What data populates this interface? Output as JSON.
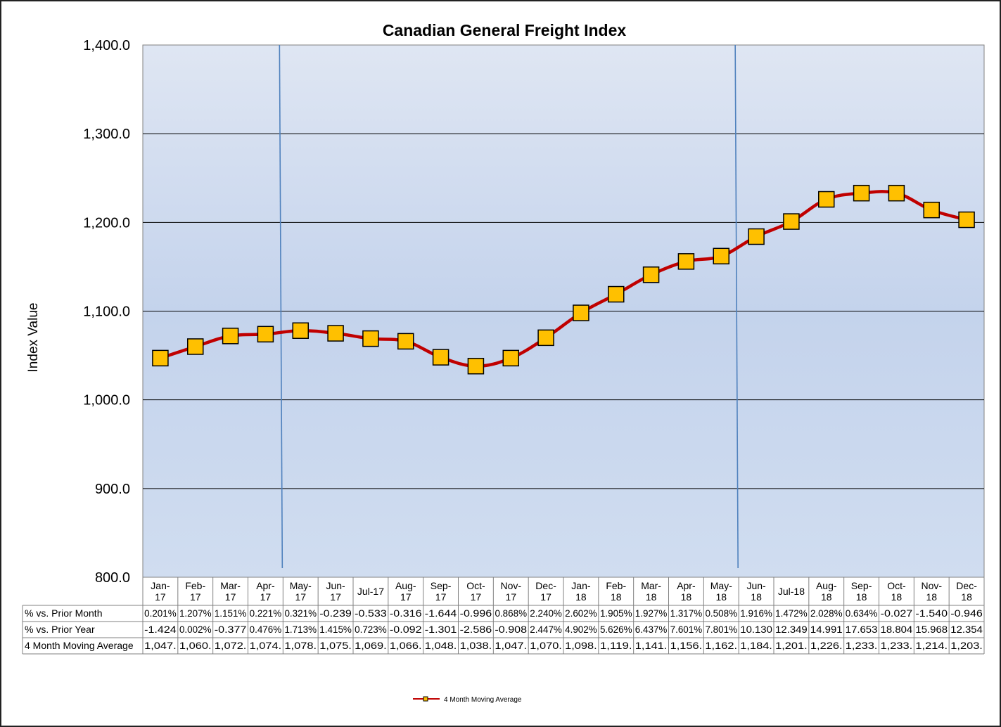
{
  "chart_data": {
    "type": "line",
    "title": "Canadian General Freight Index",
    "ylabel": "Index Value",
    "xlabel": "",
    "ylim": [
      800,
      1400
    ],
    "y_ticks": [
      "1,400.0",
      "1,300.0",
      "1,200.0",
      "1,100.0",
      "1,000.0",
      "900.0",
      "800.0"
    ],
    "y_tick_values": [
      1400,
      1300,
      1200,
      1100,
      1000,
      900,
      800
    ],
    "grid": true,
    "legend_position": "bottom-center",
    "categories": [
      [
        "Jan-",
        "17"
      ],
      [
        "Feb-",
        "17"
      ],
      [
        "Mar-",
        "17"
      ],
      [
        "Apr-",
        "17"
      ],
      [
        "May-",
        "17"
      ],
      [
        "Jun-",
        "17"
      ],
      [
        "Jul-17"
      ],
      [
        "Aug-",
        "17"
      ],
      [
        "Sep-",
        "17"
      ],
      [
        "Oct-",
        "17"
      ],
      [
        "Nov-",
        "17"
      ],
      [
        "Dec-",
        "17"
      ],
      [
        "Jan-",
        "18"
      ],
      [
        "Feb-",
        "18"
      ],
      [
        "Mar-",
        "18"
      ],
      [
        "Apr-",
        "18"
      ],
      [
        "May-",
        "18"
      ],
      [
        "Jun-",
        "18"
      ],
      [
        "Jul-18"
      ],
      [
        "Aug-",
        "18"
      ],
      [
        "Sep-",
        "18"
      ],
      [
        "Oct-",
        "18"
      ],
      [
        "Nov-",
        "18"
      ],
      [
        "Dec-",
        "18"
      ]
    ],
    "series": [
      {
        "name": "4 Month Moving Average",
        "color": "#c00000",
        "marker_color": "#ffc000",
        "values": [
          1047,
          1060,
          1072,
          1074,
          1078,
          1075,
          1069,
          1066,
          1048,
          1038,
          1047,
          1070,
          1098,
          1119,
          1141,
          1156,
          1162,
          1184,
          1201,
          1226,
          1233,
          1233,
          1214,
          1203
        ]
      }
    ],
    "vertical_markers": [
      {
        "after_category": "Apr-17",
        "color": "#4f81bd"
      },
      {
        "after_category": "May-18",
        "color": "#4f81bd"
      }
    ],
    "table": {
      "rows": [
        {
          "label": "% vs. Prior Month",
          "cells": [
            "0.201%",
            "1.207%",
            "1.151%",
            "0.221%",
            "0.321%",
            "-0.239",
            "-0.533",
            "-0.316",
            "-1.644",
            "-0.996",
            "0.868%",
            "2.240%",
            "2.602%",
            "1.905%",
            "1.927%",
            "1.317%",
            "0.508%",
            "1.916%",
            "1.472%",
            "2.028%",
            "0.634%",
            "-0.027",
            "-1.540",
            "-0.946"
          ]
        },
        {
          "label": "% vs. Prior Year",
          "cells": [
            "-1.424",
            "0.002%",
            "-0.377",
            "0.476%",
            "1.713%",
            "1.415%",
            "0.723%",
            "-0.092",
            "-1.301",
            "-2.586",
            "-0.908",
            "2.447%",
            "4.902%",
            "5.626%",
            "6.437%",
            "7.601%",
            "7.801%",
            "10.130",
            "12.349",
            "14.991",
            "17.653",
            "18.804",
            "15.968",
            "12.354"
          ]
        },
        {
          "label": "4 Month Moving Average",
          "cells": [
            "1,047.",
            "1,060.",
            "1,072.",
            "1,074.",
            "1,078.",
            "1,075.",
            "1,069.",
            "1,066.",
            "1,048.",
            "1,038.",
            "1,047.",
            "1,070.",
            "1,098.",
            "1,119.",
            "1,141.",
            "1,156.",
            "1,162.",
            "1,184.",
            "1,201.",
            "1,226.",
            "1,233.",
            "1,233.",
            "1,214.",
            "1,203."
          ]
        }
      ]
    }
  }
}
